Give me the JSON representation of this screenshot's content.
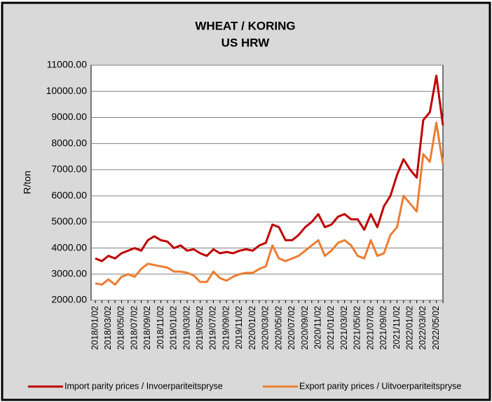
{
  "chart_data": {
    "type": "line",
    "title": "WHEAT / KORING",
    "subtitle": "US HRW",
    "y_label": "R/ton",
    "categories": [
      "2018/01/02",
      null,
      "2018/03/02",
      null,
      "2018/05/02",
      null,
      "2018/07/02",
      null,
      "2018/09/02",
      null,
      "2018/11/02",
      null,
      "2019/01/02",
      null,
      "2019/03/02",
      null,
      "2019/05/02",
      null,
      "2019/07/02",
      null,
      "2019/09/02",
      null,
      "2019/11/02",
      null,
      "2020/01/02",
      null,
      "2020/03/02",
      null,
      "2020/05/02",
      null,
      "2020/07/02",
      null,
      "2020/09/02",
      null,
      "2020/11/02",
      null,
      "2021/01/02",
      null,
      "2021/03/02",
      null,
      "2021/05/02",
      null,
      "2021/07/02",
      null,
      "2021/09/02",
      null,
      "2021/11/02",
      null,
      "2022/01/02",
      null,
      "2022/03/02",
      null,
      "2022/05/02",
      null
    ],
    "series": [
      {
        "name": "Import parity prices / Invoerpariteitspryse",
        "color": "#c00000",
        "values": [
          3600,
          3500,
          3700,
          3600,
          3800,
          3900,
          4000,
          3900,
          4300,
          4450,
          4300,
          4250,
          4000,
          4100,
          3900,
          3950,
          3800,
          3700,
          3950,
          3800,
          3850,
          3800,
          3900,
          3950,
          3900,
          4100,
          4200,
          4900,
          4800,
          4300,
          4300,
          4500,
          4800,
          5000,
          5300,
          4800,
          4900,
          5200,
          5300,
          5100,
          5100,
          4700,
          5300,
          4800,
          5600,
          6000,
          6800,
          7400,
          7000,
          6700,
          8900,
          9200,
          10600,
          8700
        ]
      },
      {
        "name": "Export parity prices / Uitvoerpariteitspryse",
        "color": "#ed7d31",
        "values": [
          2650,
          2600,
          2800,
          2600,
          2900,
          3000,
          2900,
          3200,
          3400,
          3350,
          3300,
          3250,
          3100,
          3100,
          3050,
          2950,
          2700,
          2700,
          3100,
          2850,
          2750,
          2900,
          3000,
          3050,
          3050,
          3200,
          3300,
          4100,
          3600,
          3500,
          3600,
          3700,
          3900,
          4100,
          4300,
          3700,
          3900,
          4200,
          4300,
          4100,
          3700,
          3600,
          4300,
          3700,
          3800,
          4500,
          4800,
          6000,
          5700,
          5400,
          7600,
          7300,
          8800,
          7200
        ]
      }
    ],
    "ylim": [
      2000,
      11000
    ],
    "yticks": [
      {
        "value": 2000,
        "label": "2000.00"
      },
      {
        "value": 3000,
        "label": "3000.00"
      },
      {
        "value": 4000,
        "label": "4000.00"
      },
      {
        "value": 5000,
        "label": "5000.00"
      },
      {
        "value": 6000,
        "label": "6000.00"
      },
      {
        "value": 7000,
        "label": "7000.00"
      },
      {
        "value": 8000,
        "label": "8000.00"
      },
      {
        "value": 9000,
        "label": "9000.00"
      },
      {
        "value": 10000,
        "label": "10000.00"
      },
      {
        "value": 11000,
        "label": "11000.00"
      }
    ],
    "grid": true,
    "legend": "bottom"
  }
}
